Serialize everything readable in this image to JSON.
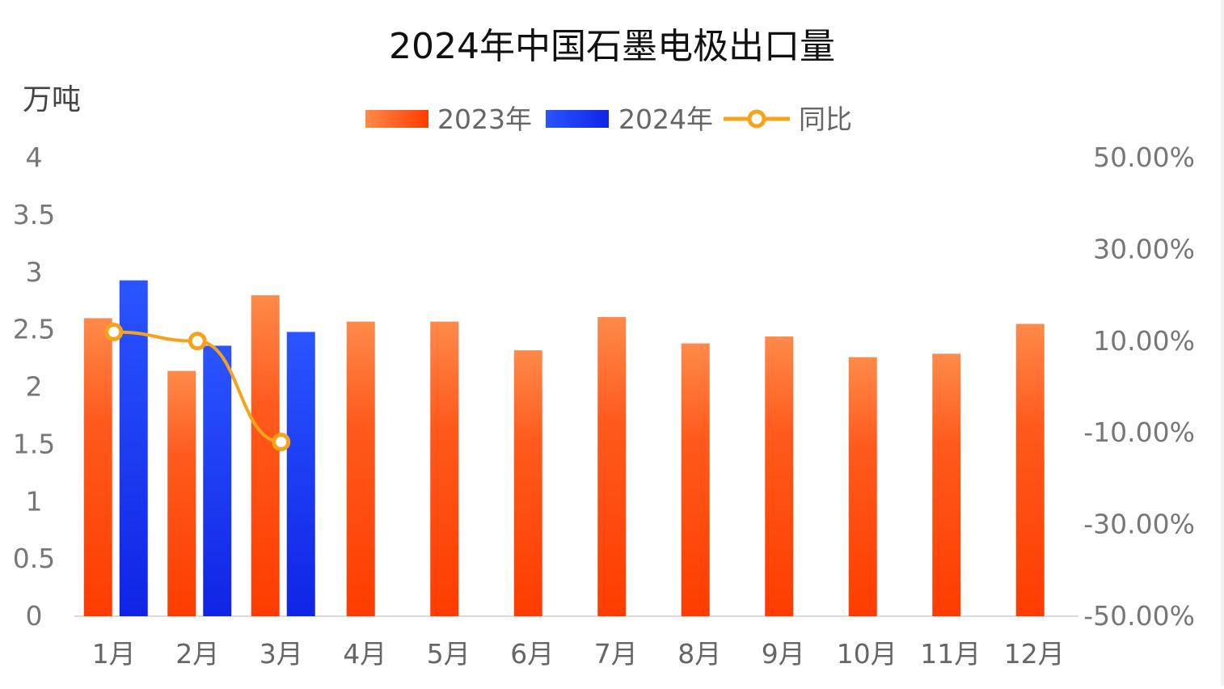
{
  "chart_data": {
    "type": "bar",
    "title": "2024年中国石墨电极出口量",
    "y_left_label": "万吨",
    "categories": [
      "1月",
      "2月",
      "3月",
      "4月",
      "5月",
      "6月",
      "7月",
      "8月",
      "9月",
      "10月",
      "11月",
      "12月"
    ],
    "series": [
      {
        "name": "2023年",
        "type": "bar",
        "axis": "left",
        "color": "#ff4a10",
        "values": [
          2.6,
          2.14,
          2.8,
          2.57,
          2.57,
          2.32,
          2.61,
          2.38,
          2.44,
          2.26,
          2.29,
          2.55
        ]
      },
      {
        "name": "2024年",
        "type": "bar",
        "axis": "left",
        "color": "#1a3cf0",
        "values": [
          2.93,
          2.36,
          2.48,
          null,
          null,
          null,
          null,
          null,
          null,
          null,
          null,
          null
        ]
      },
      {
        "name": "同比",
        "type": "line",
        "axis": "right",
        "color": "#f5a31a",
        "values": [
          0.12,
          0.1,
          -0.12,
          null,
          null,
          null,
          null,
          null,
          null,
          null,
          null,
          null
        ]
      }
    ],
    "y_left": {
      "min": 0,
      "max": 4,
      "ticks": [
        0,
        0.5,
        1,
        1.5,
        2,
        2.5,
        3,
        3.5,
        4
      ],
      "tick_labels": [
        "0",
        "0.5",
        "1",
        "1.5",
        "2",
        "2.5",
        "3",
        "3.5",
        "4"
      ]
    },
    "y_right": {
      "min": -0.5,
      "max": 0.5,
      "ticks": [
        -0.5,
        -0.3,
        -0.1,
        0.1,
        0.3,
        0.5
      ],
      "tick_labels": [
        "-50.00%",
        "-30.00%",
        "-10.00%",
        "10.00%",
        "30.00%",
        "50.00%"
      ]
    },
    "grid": false,
    "legend_position": "top-center"
  }
}
